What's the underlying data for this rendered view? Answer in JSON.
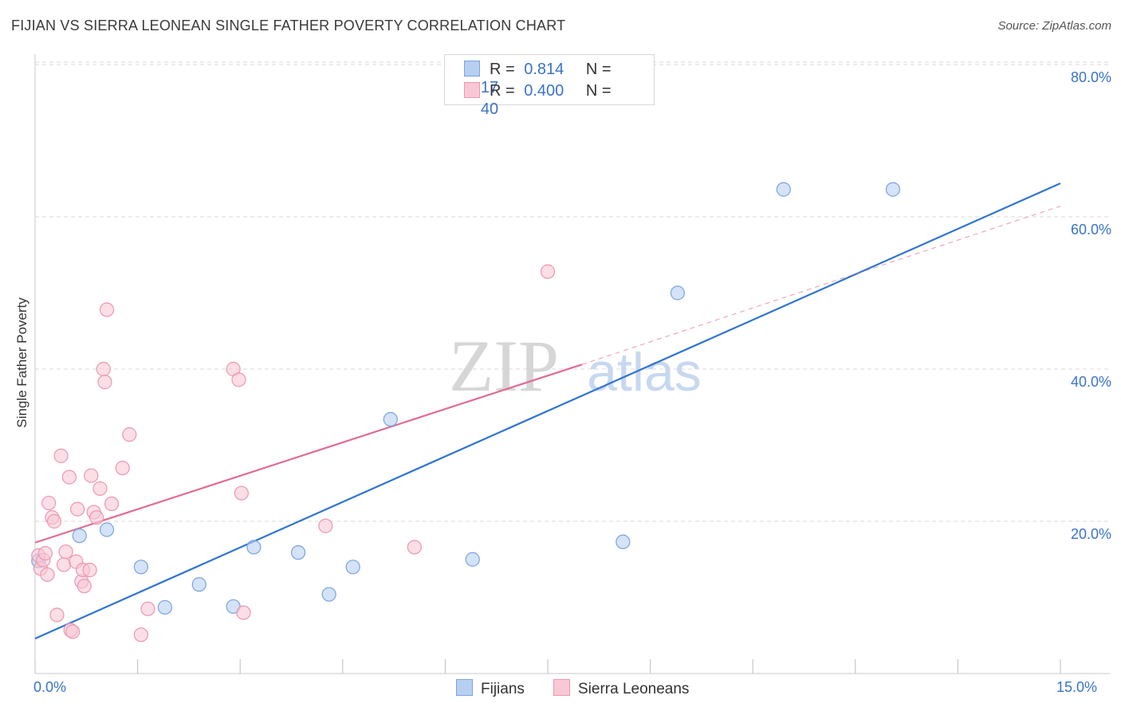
{
  "header": {
    "title": "FIJIAN VS SIERRA LEONEAN SINGLE FATHER POVERTY CORRELATION CHART",
    "source": "Source: ZipAtlas.com"
  },
  "legend": {
    "rows": [
      {
        "r_label": "R =",
        "r_value": "0.814",
        "n_label": "N =",
        "n_value": "17"
      },
      {
        "r_label": "R =",
        "r_value": "0.400",
        "n_label": "N =",
        "n_value": "40"
      }
    ],
    "bottom": [
      "Fijians",
      "Sierra Leoneans"
    ]
  },
  "watermark": {
    "zip": "ZIP",
    "atlas": "atlas"
  },
  "colors": {
    "fijians_fill": "#b7d0f2",
    "fijians_stroke": "#7aa3de",
    "fijians_line": "#2f74d0",
    "sierra_fill": "#f8c8d6",
    "sierra_stroke": "#eb97b0",
    "sierra_line": "#e06c92",
    "tick_text": "#3a73c8",
    "grid": "#d9d9d9"
  },
  "chart_data": {
    "type": "scatter",
    "title": "FIJIAN VS SIERRA LEONEAN SINGLE FATHER POVERTY CORRELATION CHART",
    "xlabel": "",
    "ylabel": "Single Father Poverty",
    "xlim": [
      0,
      15
    ],
    "ylim": [
      0,
      80
    ],
    "x_tick_labels": [
      "0.0%",
      "15.0%"
    ],
    "y_ticks": [
      20,
      40,
      60,
      80
    ],
    "y_tick_labels": [
      "20.0%",
      "40.0%",
      "60.0%",
      "80.0%"
    ],
    "grid": true,
    "legend_position": "top-center",
    "series": [
      {
        "name": "Fijians",
        "points": [
          [
            0.05,
            14.8
          ],
          [
            0.65,
            18.1
          ],
          [
            1.05,
            18.9
          ],
          [
            1.55,
            14.0
          ],
          [
            1.9,
            8.7
          ],
          [
            2.4,
            11.7
          ],
          [
            2.9,
            8.8
          ],
          [
            3.2,
            16.6
          ],
          [
            3.85,
            15.9
          ],
          [
            4.3,
            10.4
          ],
          [
            4.65,
            14.0
          ],
          [
            5.2,
            33.4
          ],
          [
            6.4,
            15.0
          ],
          [
            8.6,
            17.3
          ],
          [
            9.4,
            50.0
          ],
          [
            10.95,
            63.6
          ],
          [
            12.55,
            63.6
          ]
        ],
        "trend": {
          "x": [
            0,
            15
          ],
          "y": [
            4.6,
            64.4
          ]
        }
      },
      {
        "name": "Sierra Leoneans",
        "points": [
          [
            0.05,
            15.5
          ],
          [
            0.08,
            13.8
          ],
          [
            0.12,
            14.9
          ],
          [
            0.15,
            15.8
          ],
          [
            0.18,
            13.0
          ],
          [
            0.2,
            22.4
          ],
          [
            0.25,
            20.5
          ],
          [
            0.28,
            20.0
          ],
          [
            0.32,
            7.7
          ],
          [
            0.38,
            28.6
          ],
          [
            0.42,
            14.3
          ],
          [
            0.45,
            16.0
          ],
          [
            0.5,
            25.8
          ],
          [
            0.52,
            5.7
          ],
          [
            0.55,
            5.5
          ],
          [
            0.6,
            14.7
          ],
          [
            0.62,
            21.6
          ],
          [
            0.68,
            12.1
          ],
          [
            0.7,
            13.6
          ],
          [
            0.72,
            11.5
          ],
          [
            0.8,
            13.6
          ],
          [
            0.82,
            26.0
          ],
          [
            0.86,
            21.2
          ],
          [
            0.9,
            20.5
          ],
          [
            0.95,
            24.3
          ],
          [
            1.0,
            40.0
          ],
          [
            1.02,
            38.3
          ],
          [
            1.05,
            47.8
          ],
          [
            1.12,
            22.3
          ],
          [
            1.28,
            27.0
          ],
          [
            1.38,
            31.4
          ],
          [
            1.55,
            5.1
          ],
          [
            1.65,
            8.5
          ],
          [
            2.9,
            40.0
          ],
          [
            2.98,
            38.6
          ],
          [
            3.02,
            23.7
          ],
          [
            3.05,
            8.0
          ],
          [
            4.25,
            19.4
          ],
          [
            5.55,
            16.6
          ],
          [
            7.5,
            52.8
          ]
        ],
        "trend": {
          "x": [
            0,
            8.0
          ],
          "y": [
            17.2,
            40.6
          ]
        },
        "trend_extended": {
          "x": [
            8.0,
            15
          ],
          "y": [
            40.6,
            61.4
          ]
        }
      }
    ]
  }
}
